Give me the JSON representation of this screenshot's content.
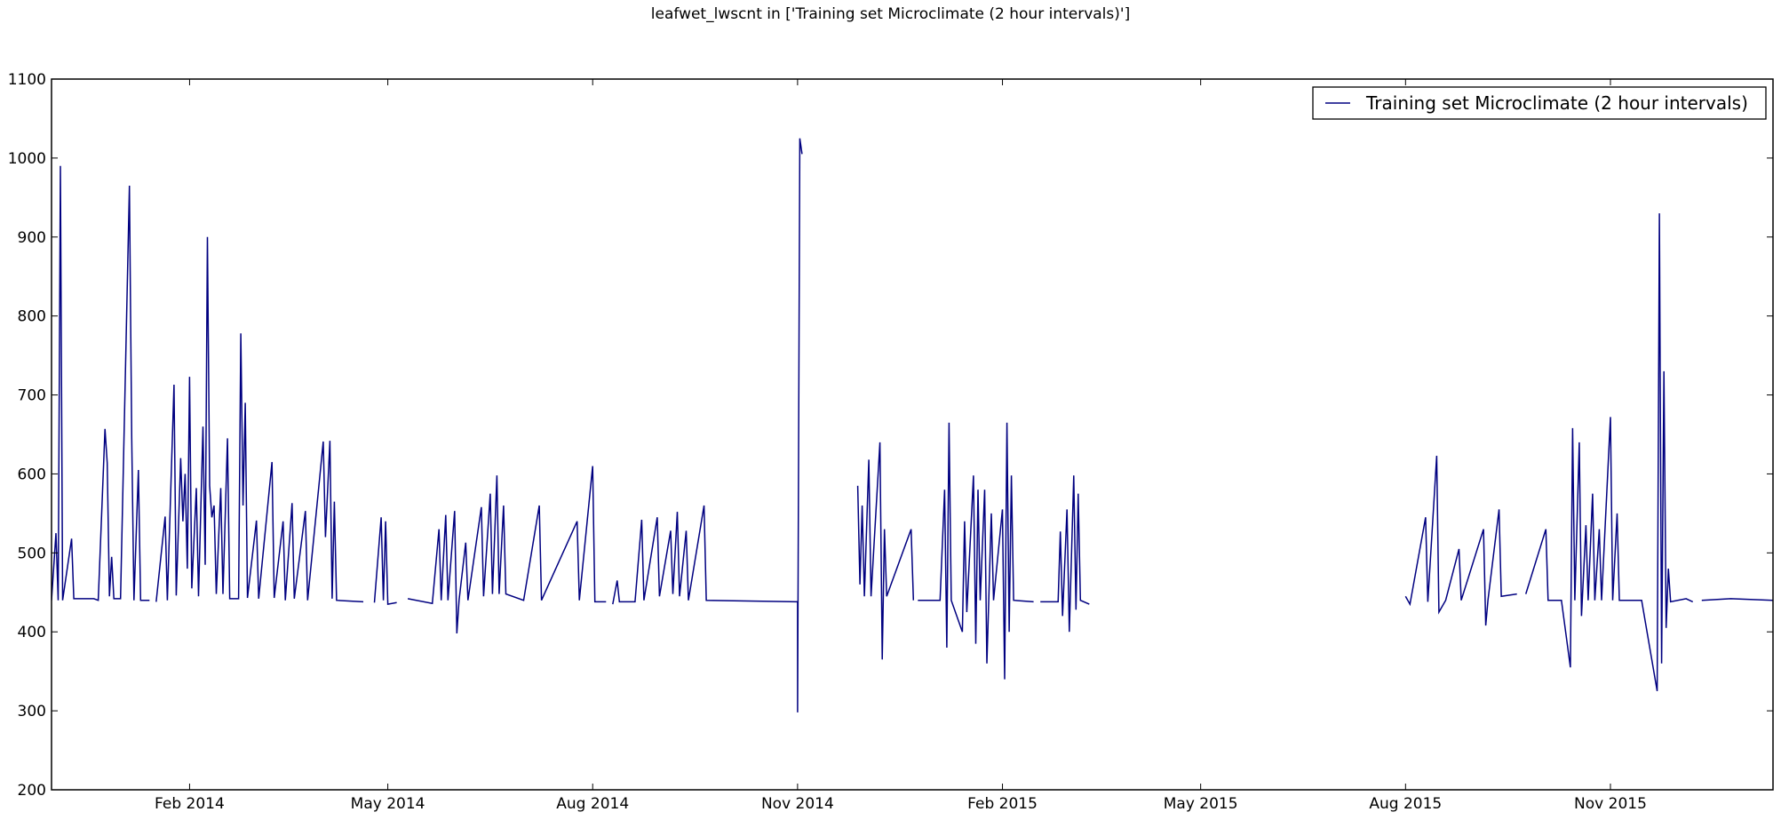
{
  "chart_data": {
    "type": "line",
    "title": "leafwet_lwscnt in ['Training set Microclimate (2 hour intervals)']",
    "xlabel": "",
    "ylabel": "",
    "x_range": [
      "2013-12-01",
      "2016-01-13"
    ],
    "ylim": [
      200,
      1100
    ],
    "y_ticks": [
      200,
      300,
      400,
      500,
      600,
      700,
      800,
      900,
      1000,
      1100
    ],
    "x_ticks": [
      {
        "date": "2014-02-01",
        "label": "Feb 2014"
      },
      {
        "date": "2014-05-01",
        "label": "May 2014"
      },
      {
        "date": "2014-08-01",
        "label": "Aug 2014"
      },
      {
        "date": "2014-11-01",
        "label": "Nov 2014"
      },
      {
        "date": "2015-02-01",
        "label": "Feb 2015"
      },
      {
        "date": "2015-05-01",
        "label": "May 2015"
      },
      {
        "date": "2015-08-01",
        "label": "Aug 2015"
      },
      {
        "date": "2015-11-01",
        "label": "Nov 2015"
      }
    ],
    "grid": false,
    "legend": "top-right",
    "series": [
      {
        "name": "Training set Microclimate (2 hour intervals)",
        "color": "#000080",
        "segments": [
          [
            [
              "2013-12-01",
              440
            ],
            [
              "2013-12-03",
              525
            ],
            [
              "2013-12-04",
              440
            ],
            [
              "2013-12-05",
              990
            ],
            [
              "2013-12-06",
              440
            ],
            [
              "2013-12-10",
              518
            ],
            [
              "2013-12-11",
              442
            ],
            [
              "2013-12-20",
              442
            ],
            [
              "2013-12-22",
              440
            ],
            [
              "2013-12-25",
              657
            ],
            [
              "2013-12-26",
              614
            ],
            [
              "2013-12-27",
              445
            ],
            [
              "2013-12-28",
              495
            ],
            [
              "2013-12-29",
              442
            ],
            [
              "2014-01-01",
              442
            ],
            [
              "2014-01-05",
              965
            ],
            [
              "2014-01-06",
              645
            ],
            [
              "2014-01-07",
              440
            ],
            [
              "2014-01-09",
              605
            ],
            [
              "2014-01-10",
              440
            ],
            [
              "2014-01-14",
              440
            ]
          ],
          [
            [
              "2014-01-17",
              438
            ],
            [
              "2014-01-21",
              546
            ],
            [
              "2014-01-22",
              440
            ],
            [
              "2014-01-25",
              713
            ],
            [
              "2014-01-26",
              446
            ],
            [
              "2014-01-28",
              620
            ],
            [
              "2014-01-29",
              540
            ],
            [
              "2014-01-30",
              600
            ],
            [
              "2014-01-31",
              480
            ],
            [
              "2014-02-01",
              723
            ],
            [
              "2014-02-02",
              455
            ],
            [
              "2014-02-04",
              582
            ],
            [
              "2014-02-05",
              445
            ],
            [
              "2014-02-07",
              660
            ],
            [
              "2014-02-08",
              485
            ],
            [
              "2014-02-09",
              900
            ],
            [
              "2014-02-10",
              585
            ],
            [
              "2014-02-11",
              545
            ],
            [
              "2014-02-12",
              560
            ],
            [
              "2014-02-13",
              448
            ],
            [
              "2014-02-15",
              582
            ],
            [
              "2014-02-16",
              448
            ],
            [
              "2014-02-18",
              645
            ],
            [
              "2014-02-19",
              442
            ],
            [
              "2014-02-23",
              442
            ],
            [
              "2014-02-24",
              778
            ],
            [
              "2014-02-25",
              560
            ],
            [
              "2014-02-26",
              690
            ],
            [
              "2014-02-27",
              443
            ],
            [
              "2014-03-03",
              541
            ],
            [
              "2014-03-04",
              442
            ],
            [
              "2014-03-10",
              615
            ],
            [
              "2014-03-11",
              443
            ],
            [
              "2014-03-15",
              540
            ],
            [
              "2014-03-16",
              440
            ],
            [
              "2014-03-19",
              563
            ],
            [
              "2014-03-20",
              442
            ],
            [
              "2014-03-25",
              553
            ],
            [
              "2014-03-26",
              440
            ],
            [
              "2014-04-02",
              641
            ],
            [
              "2014-04-03",
              520
            ],
            [
              "2014-04-05",
              642
            ],
            [
              "2014-04-06",
              442
            ],
            [
              "2014-04-07",
              565
            ],
            [
              "2014-04-08",
              440
            ],
            [
              "2014-04-20",
              438
            ]
          ],
          [
            [
              "2014-04-25",
              437
            ],
            [
              "2014-04-28",
              545
            ],
            [
              "2014-04-29",
              440
            ],
            [
              "2014-04-30",
              540
            ],
            [
              "2014-05-01",
              435
            ],
            [
              "2014-05-05",
              437
            ]
          ],
          [
            [
              "2014-05-10",
              442
            ],
            [
              "2014-05-21",
              436
            ],
            [
              "2014-05-24",
              530
            ],
            [
              "2014-05-25",
              440
            ],
            [
              "2014-05-27",
              548
            ],
            [
              "2014-05-28",
              440
            ],
            [
              "2014-05-31",
              553
            ],
            [
              "2014-06-01",
              398
            ],
            [
              "2014-06-02",
              440
            ],
            [
              "2014-06-05",
              513
            ],
            [
              "2014-06-06",
              440
            ],
            [
              "2014-06-12",
              558
            ],
            [
              "2014-06-13",
              445
            ],
            [
              "2014-06-16",
              575
            ],
            [
              "2014-06-17",
              448
            ],
            [
              "2014-06-19",
              598
            ],
            [
              "2014-06-20",
              448
            ],
            [
              "2014-06-22",
              560
            ],
            [
              "2014-06-23",
              448
            ],
            [
              "2014-07-01",
              440
            ],
            [
              "2014-07-08",
              560
            ],
            [
              "2014-07-09",
              440
            ],
            [
              "2014-07-25",
              540
            ],
            [
              "2014-07-26",
              440
            ],
            [
              "2014-08-01",
              610
            ],
            [
              "2014-08-02",
              438
            ],
            [
              "2014-08-07",
              438
            ]
          ],
          [
            [
              "2014-08-10",
              435
            ],
            [
              "2014-08-12",
              465
            ],
            [
              "2014-08-13",
              438
            ],
            [
              "2014-08-20",
              438
            ],
            [
              "2014-08-23",
              542
            ],
            [
              "2014-08-24",
              440
            ],
            [
              "2014-08-30",
              545
            ],
            [
              "2014-08-31",
              445
            ],
            [
              "2014-09-05",
              528
            ],
            [
              "2014-09-06",
              448
            ],
            [
              "2014-09-08",
              552
            ],
            [
              "2014-09-09",
              445
            ],
            [
              "2014-09-12",
              528
            ],
            [
              "2014-09-13",
              440
            ],
            [
              "2014-09-20",
              560
            ],
            [
              "2014-09-21",
              440
            ],
            [
              "2014-11-01",
              438
            ],
            [
              "2014-11-01",
              298
            ],
            [
              "2014-11-02",
              1025
            ],
            [
              "2014-11-03",
              1005
            ]
          ],
          [
            [
              "2014-11-28",
              585
            ],
            [
              "2014-11-29",
              460
            ],
            [
              "2014-11-30",
              560
            ],
            [
              "2014-12-01",
              445
            ],
            [
              "2014-12-03",
              618
            ],
            [
              "2014-12-04",
              445
            ],
            [
              "2014-12-08",
              640
            ],
            [
              "2014-12-09",
              365
            ],
            [
              "2014-12-10",
              530
            ],
            [
              "2014-12-11",
              445
            ],
            [
              "2014-12-22",
              530
            ],
            [
              "2014-12-23",
              440
            ]
          ],
          [
            [
              "2014-12-25",
              440
            ],
            [
              "2015-01-04",
              440
            ],
            [
              "2015-01-06",
              580
            ],
            [
              "2015-01-07",
              380
            ],
            [
              "2015-01-08",
              665
            ],
            [
              "2015-01-09",
              440
            ],
            [
              "2015-01-14",
              400
            ],
            [
              "2015-01-15",
              540
            ],
            [
              "2015-01-16",
              425
            ],
            [
              "2015-01-19",
              598
            ],
            [
              "2015-01-20",
              385
            ],
            [
              "2015-01-21",
              580
            ],
            [
              "2015-01-22",
              440
            ],
            [
              "2015-01-24",
              580
            ],
            [
              "2015-01-25",
              360
            ],
            [
              "2015-01-27",
              550
            ],
            [
              "2015-01-28",
              440
            ],
            [
              "2015-02-01",
              555
            ],
            [
              "2015-02-02",
              340
            ],
            [
              "2015-02-03",
              665
            ],
            [
              "2015-02-04",
              400
            ],
            [
              "2015-02-05",
              598
            ],
            [
              "2015-02-06",
              440
            ],
            [
              "2015-02-15",
              438
            ]
          ],
          [
            [
              "2015-02-18",
              438
            ],
            [
              "2015-02-26",
              438
            ],
            [
              "2015-02-27",
              527
            ],
            [
              "2015-02-28",
              420
            ],
            [
              "2015-03-02",
              555
            ],
            [
              "2015-03-03",
              400
            ],
            [
              "2015-03-05",
              598
            ],
            [
              "2015-03-06",
              428
            ],
            [
              "2015-03-07",
              575
            ],
            [
              "2015-03-08",
              440
            ],
            [
              "2015-03-12",
              435
            ]
          ],
          [
            [
              "2015-08-01",
              445
            ],
            [
              "2015-08-03",
              435
            ],
            [
              "2015-08-10",
              545
            ],
            [
              "2015-08-11",
              438
            ],
            [
              "2015-08-15",
              623
            ],
            [
              "2015-08-16",
              425
            ],
            [
              "2015-08-19",
              440
            ],
            [
              "2015-08-25",
              505
            ],
            [
              "2015-08-26",
              440
            ],
            [
              "2015-09-05",
              530
            ],
            [
              "2015-09-06",
              408
            ],
            [
              "2015-09-07",
              440
            ],
            [
              "2015-09-12",
              555
            ],
            [
              "2015-09-13",
              445
            ],
            [
              "2015-09-20",
              448
            ]
          ],
          [
            [
              "2015-09-24",
              448
            ],
            [
              "2015-10-03",
              530
            ],
            [
              "2015-10-04",
              440
            ],
            [
              "2015-10-10",
              440
            ],
            [
              "2015-10-14",
              355
            ],
            [
              "2015-10-15",
              658
            ],
            [
              "2015-10-16",
              440
            ],
            [
              "2015-10-18",
              640
            ],
            [
              "2015-10-19",
              420
            ],
            [
              "2015-10-21",
              535
            ],
            [
              "2015-10-22",
              440
            ],
            [
              "2015-10-24",
              575
            ],
            [
              "2015-10-25",
              440
            ],
            [
              "2015-10-27",
              530
            ],
            [
              "2015-10-28",
              440
            ],
            [
              "2015-11-01",
              672
            ],
            [
              "2015-11-02",
              440
            ],
            [
              "2015-11-04",
              550
            ],
            [
              "2015-11-05",
              440
            ],
            [
              "2015-11-12",
              440
            ],
            [
              "2015-11-15",
              440
            ],
            [
              "2015-11-22",
              325
            ],
            [
              "2015-11-23",
              930
            ],
            [
              "2015-11-24",
              360
            ],
            [
              "2015-11-25",
              730
            ],
            [
              "2015-11-26",
              405
            ],
            [
              "2015-11-27",
              480
            ],
            [
              "2015-11-28",
              438
            ],
            [
              "2015-12-05",
              442
            ],
            [
              "2015-12-08",
              438
            ]
          ],
          [
            [
              "2015-12-12",
              440
            ],
            [
              "2015-12-25",
              442
            ],
            [
              "2016-01-13",
              440
            ]
          ]
        ]
      }
    ]
  }
}
